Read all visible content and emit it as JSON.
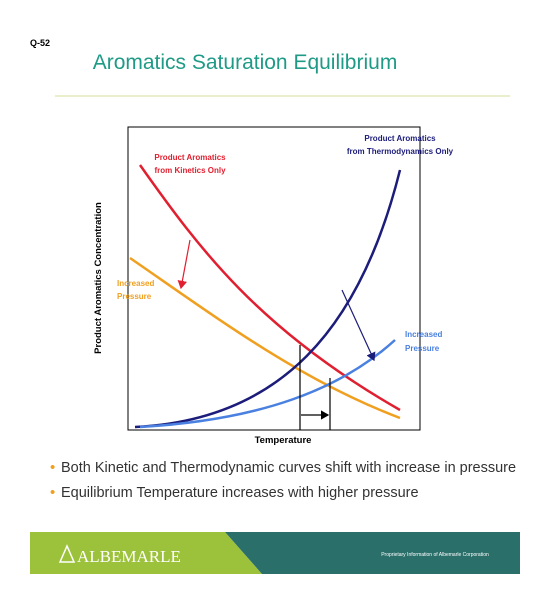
{
  "slide_number": "Q-52",
  "title": "Aromatics Saturation Equilibrium",
  "chart": {
    "y_axis_label": "Product Aromatics Concentration",
    "x_axis_label": "Temperature",
    "kinetics_label": [
      "Product Aromatics",
      "from Kinetics Only"
    ],
    "thermo_label": [
      "Product Aromatics",
      "from Thermodynamics Only"
    ],
    "kinetics_pressure_label": [
      "Increased",
      "Pressure"
    ],
    "thermo_pressure_label": [
      "Increased",
      "Pressure"
    ]
  },
  "bullets": [
    "Both Kinetic and Thermodynamic curves shift with increase in pressure",
    "Equilibrium Temperature increases with higher pressure"
  ],
  "footer": {
    "brand": "ALBEMARLE",
    "note": "Proprietary Information of Albemarle Corporation"
  }
}
